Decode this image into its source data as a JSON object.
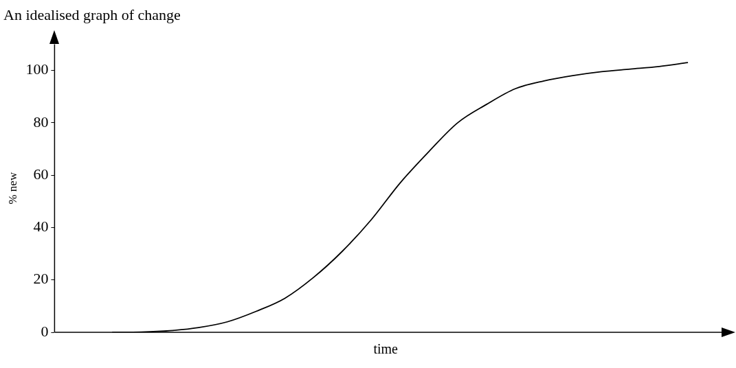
{
  "chart_data": {
    "type": "line",
    "title": "An idealised graph of change",
    "xlabel": "time",
    "ylabel": "% new",
    "categories": [
      null,
      null,
      null,
      null,
      null,
      null,
      null,
      null,
      null,
      null,
      null,
      null,
      null,
      null,
      null,
      null,
      null,
      null,
      null,
      null,
      null,
      null,
      null,
      null
    ],
    "series": [
      {
        "color": "#000000",
        "values": [
          null,
          null,
          0,
          0.1,
          0.6,
          1.8,
          4,
          8,
          13,
          21,
          31,
          43,
          57,
          69,
          80,
          87,
          93,
          96,
          98,
          99.5,
          100.5,
          101.5,
          103,
          null
        ]
      }
    ],
    "ylim": [
      0,
      110
    ],
    "yticks": [
      0,
      20,
      40,
      60,
      80,
      100
    ],
    "grid": false,
    "legend": false,
    "marker": "none",
    "line_style": "solid",
    "tick_labels": "y"
  }
}
